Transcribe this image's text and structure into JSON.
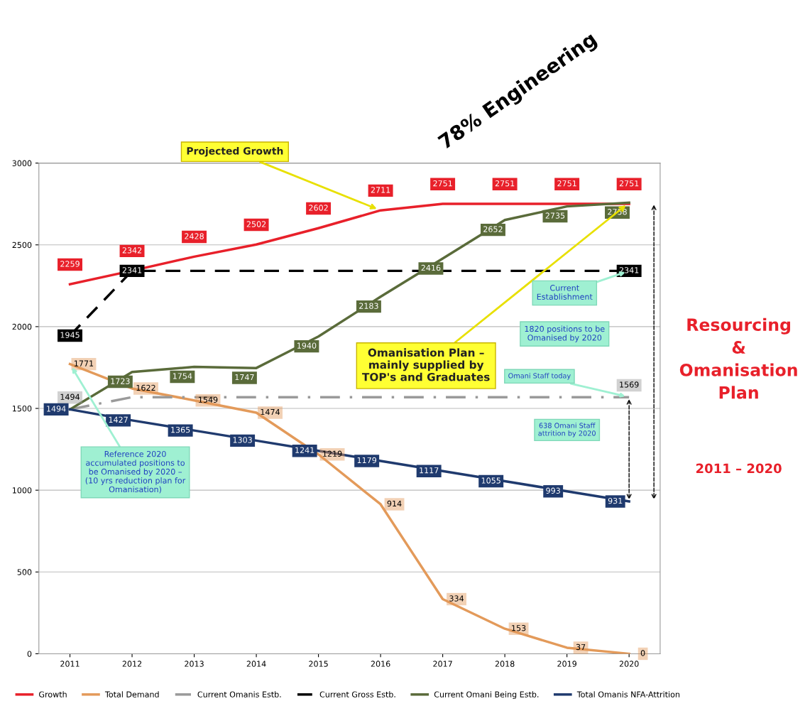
{
  "chart_data": {
    "type": "line",
    "title": "Resourcing\n&\nOmanisation\nPlan",
    "subtitle": "2011 – 2020",
    "categories": [
      "2011",
      "2012",
      "2013",
      "2014",
      "2015",
      "2016",
      "2017",
      "2018",
      "2019",
      "2020"
    ],
    "series": [
      {
        "name": "Growth",
        "color": "#e8202a",
        "line_style": "solid",
        "values": [
          2259,
          2342,
          2428,
          2502,
          2602,
          2711,
          2751,
          2751,
          2751,
          2751
        ],
        "value_labels": [
          "2259",
          "2342",
          "2428",
          "2502",
          "2602",
          "2711",
          "2751",
          "2751",
          "2751",
          "2751"
        ]
      },
      {
        "name": "Total Demand",
        "color": "#e39a5a",
        "line_style": "solid",
        "values": [
          1771,
          1622,
          1549,
          1474,
          1219,
          914,
          334,
          153,
          37,
          0
        ],
        "value_labels": [
          "1771",
          "1622",
          "1549",
          "1474",
          "1219",
          "914",
          "334",
          "153",
          "37",
          "0"
        ]
      },
      {
        "name": "Current Omanis Estb.",
        "color": "#9a9a9a",
        "line_style": "dashdot",
        "values": [
          1494,
          1569,
          1569,
          1569,
          1569,
          1569,
          1569,
          1569,
          1569,
          1569
        ],
        "value_labels": [
          "1494",
          null,
          null,
          null,
          null,
          null,
          null,
          null,
          null,
          "1569"
        ]
      },
      {
        "name": "Current Gross Estb.",
        "color": "#000000",
        "line_style": "dashed",
        "values": [
          1945,
          2341,
          2341,
          2341,
          2341,
          2341,
          2341,
          2341,
          2341,
          2341
        ],
        "value_labels": [
          "1945",
          "2341",
          null,
          null,
          null,
          null,
          null,
          null,
          null,
          "2341"
        ]
      },
      {
        "name": "Current Omani Being Estb.",
        "color": "#5a6b3a",
        "line_style": "solid",
        "values": [
          1494,
          1723,
          1754,
          1747,
          1940,
          2183,
          2416,
          2652,
          2735,
          2758
        ],
        "value_labels": [
          null,
          "1723",
          "1754",
          "1747",
          "1940",
          "2183",
          "2416",
          "2652",
          "2735",
          "2758"
        ]
      },
      {
        "name": "Total Omanis NFA-Attrition",
        "color": "#1f3a6e",
        "line_style": "solid",
        "values": [
          1494,
          1427,
          1365,
          1303,
          1241,
          1179,
          1117,
          1055,
          993,
          931
        ],
        "value_labels": [
          "1494",
          "1427",
          "1365",
          "1303",
          "1241",
          "1179",
          "1117",
          "1055",
          "993",
          "931"
        ]
      }
    ],
    "ylim": [
      0,
      3000
    ],
    "yticks": [
      0,
      500,
      1000,
      1500,
      2000,
      2500,
      3000
    ],
    "grid": "y",
    "legend": "bottom",
    "annotations": [
      "78% Engineering",
      {
        "text": "Projected Growth",
        "x": "2016",
        "y": 2711
      },
      {
        "text": "Omanisation Plan –\nmainly supplied by\nTOP's and Graduates",
        "x": "2020",
        "y": 2758
      },
      {
        "text": "Current\nEstablishment",
        "x": "2020",
        "y": 2341
      },
      "1820 positions to be\nOmanised by 2020",
      {
        "text": "Omani Staff today",
        "x": "2020",
        "y": 1569
      },
      "638 Omani Staff\nattrition by 2020",
      {
        "text": "Reference 2020\naccumulated positions to\nbe Omanised by 2020 –\n(10 yrs reduction plan for\nOmanisation)",
        "x": "2011",
        "y": 1771
      }
    ]
  }
}
